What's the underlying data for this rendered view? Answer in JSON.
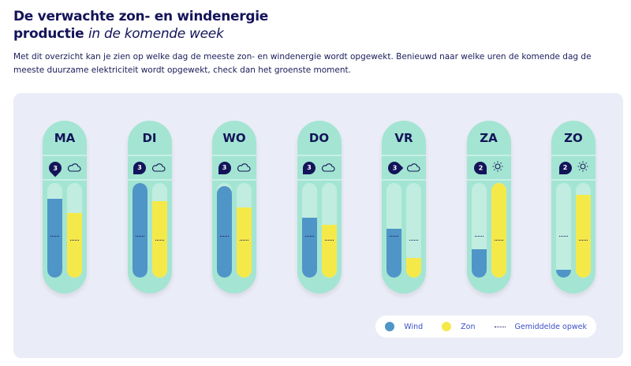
{
  "header": {
    "title_bold": "De verwachte zon- en windenergie",
    "title_bold2": "productie",
    "title_italic": "in de komende week",
    "intro": "Met dit overzicht kan je zien op welke dag de meeste zon- en windenergie wordt opgewekt. Benieuwd naar welke uren de komende dag de meeste duurzame elektriciteit wordt opgewekt, check dan het groenste moment."
  },
  "colors": {
    "wind": "#4f95c7",
    "zon": "#f5e94a",
    "card": "#a3e5d2",
    "track": "#c0ede0",
    "navy": "#14145a"
  },
  "days": [
    {
      "label": "MA",
      "wind_force": "3",
      "weather": "cloud-icon",
      "wind_dir": "down",
      "wind": 0.83,
      "zon": 0.68,
      "wind_avg": 0.43,
      "zon_avg": 0.39
    },
    {
      "label": "DI",
      "wind_force": "3",
      "weather": "cloud-icon",
      "wind_dir": "down-left",
      "wind": 1.0,
      "zon": 0.81,
      "wind_avg": 0.43,
      "zon_avg": 0.39
    },
    {
      "label": "WO",
      "wind_force": "3",
      "weather": "cloud-icon",
      "wind_dir": "down-left",
      "wind": 0.97,
      "zon": 0.74,
      "wind_avg": 0.43,
      "zon_avg": 0.39
    },
    {
      "label": "DO",
      "wind_force": "3",
      "weather": "cloud-icon",
      "wind_dir": "down-left",
      "wind": 0.63,
      "zon": 0.56,
      "wind_avg": 0.43,
      "zon_avg": 0.39
    },
    {
      "label": "VR",
      "wind_force": "3",
      "weather": "cloud-icon",
      "wind_dir": "right",
      "wind": 0.52,
      "zon": 0.21,
      "wind_avg": 0.43,
      "zon_avg": 0.39
    },
    {
      "label": "ZA",
      "wind_force": "2",
      "weather": "sun-icon",
      "wind_dir": "down-right",
      "wind": 0.3,
      "zon": 1.0,
      "wind_avg": 0.43,
      "zon_avg": 0.39
    },
    {
      "label": "ZO",
      "wind_force": "2",
      "weather": "sun-icon",
      "wind_dir": "down-left",
      "wind": 0.08,
      "zon": 0.875,
      "wind_avg": 0.43,
      "zon_avg": 0.39
    }
  ],
  "legend": {
    "wind": "Wind",
    "zon": "Zon",
    "avg": "Gemiddelde opwek"
  }
}
